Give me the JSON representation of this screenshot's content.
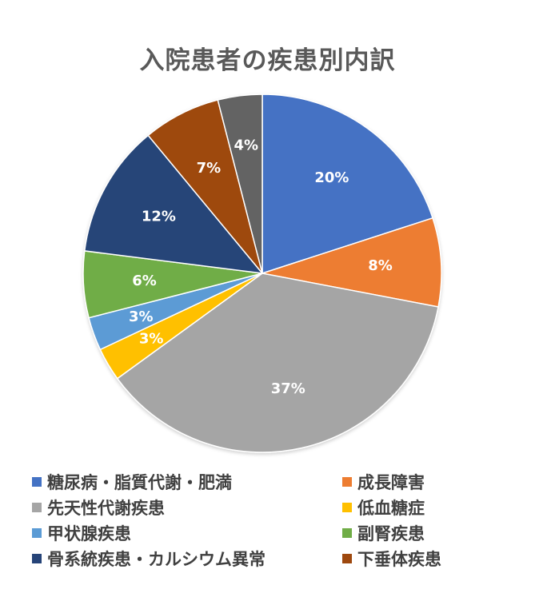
{
  "chart_data": {
    "type": "pie",
    "title": "入院患者の疾患別内訳",
    "legend_position": "bottom",
    "slices": [
      {
        "name": "糖尿病・脂質代謝・肥満",
        "value": 20,
        "label": "20%",
        "color": "#4472C4"
      },
      {
        "name": "成長障害",
        "value": 8,
        "label": "8%",
        "color": "#ED7D31"
      },
      {
        "name": "先天性代謝疾患",
        "value": 37,
        "label": "37%",
        "color": "#A5A5A5"
      },
      {
        "name": "低血糖症",
        "value": 3,
        "label": "3%",
        "color": "#FFC000"
      },
      {
        "name": "甲状腺疾患",
        "value": 3,
        "label": "3%",
        "color": "#5B9BD5"
      },
      {
        "name": "副腎疾患",
        "value": 6,
        "label": "6%",
        "color": "#70AD47"
      },
      {
        "name": "骨系統疾患・カルシウム異常",
        "value": 12,
        "label": "12%",
        "color": "#264478"
      },
      {
        "name": "下垂体疾患",
        "value": 7,
        "label": "7%",
        "color": "#9E480E"
      },
      {
        "name": "",
        "value": 4,
        "label": "4%",
        "color": "#636363"
      }
    ],
    "legend": [
      {
        "label": "糖尿病・脂質代謝・肥満",
        "color": "#4472C4"
      },
      {
        "label": "成長障害",
        "color": "#ED7D31"
      },
      {
        "label": "先天性代謝疾患",
        "color": "#A5A5A5"
      },
      {
        "label": "低血糖症",
        "color": "#FFC000"
      },
      {
        "label": "甲状腺疾患",
        "color": "#5B9BD5"
      },
      {
        "label": "副腎疾患",
        "color": "#70AD47"
      },
      {
        "label": "骨系統疾患・カルシウム異常",
        "color": "#264478"
      },
      {
        "label": "下垂体疾患",
        "color": "#9E480E"
      }
    ]
  }
}
